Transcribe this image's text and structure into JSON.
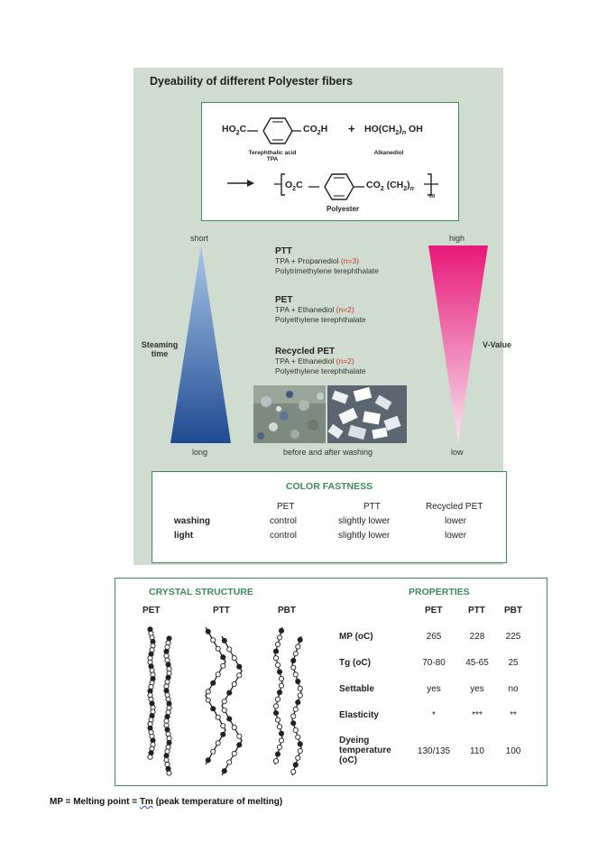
{
  "panel": {
    "title": "Dyeability of  different Polyester fibers",
    "chem": {
      "tpa_left": "HO",
      "tpa_left_sub": "2",
      "tpa_left_c": "C",
      "tpa_right": "CO",
      "tpa_right_sub": "2",
      "tpa_right_h": "H",
      "plus": "+",
      "alk": "HO(CH",
      "alk_sub": "2",
      "alk_n": "n",
      "alk_end": "OH",
      "tpa_caption_1": "Terephthalic acid",
      "tpa_caption_2": "TPA",
      "alk_caption": "Alkanediol",
      "poly_left": "O",
      "poly_left_sub": "2",
      "poly_left_c": "C",
      "poly_right": "CO",
      "poly_right_sub": "2",
      "poly_right_ch": "(CH",
      "poly_right_ch_sub": "2",
      "poly_right_n": "n",
      "poly_m": "m",
      "poly_caption": "Polyester"
    },
    "steaming": {
      "top": "short",
      "bottom": "long",
      "label_1": "Steaming",
      "label_2": "time",
      "color_top": "#a9c7e8",
      "color_bottom": "#1f4b91"
    },
    "vvalue": {
      "top": "high",
      "bottom": "low",
      "label": "V-Value",
      "color_top": "#e8187a",
      "color_bottom": "#f9e4ee"
    },
    "fibers": [
      {
        "name": "PTT",
        "formula_pre": "TPA + Propanediol ",
        "formula_n": "(n=3)",
        "full": "Polytrimethylene terephthalate"
      },
      {
        "name": "PET",
        "formula_pre": "TPA + Ethanediol ",
        "formula_n": "(n=2)",
        "full": "Polyethylene terephthalate"
      },
      {
        "name": "Recycled PET",
        "formula_pre": "TPA + Ethanediol ",
        "formula_n": "(n=2)",
        "full": "Polyethylene terephthalate"
      }
    ],
    "photo_caption": "before and after washing",
    "color_fastness": {
      "title": "COLOR FASTNESS",
      "headers": [
        "PET",
        "PTT",
        "Recycled PET"
      ],
      "rows": [
        {
          "label": "washing",
          "values": [
            "control",
            "slightly lower",
            "lower"
          ]
        },
        {
          "label": "light",
          "values": [
            "control",
            "slightly lower",
            "lower"
          ]
        }
      ]
    }
  },
  "crystal": {
    "title": "CRYSTAL STRUCTURE",
    "labels": [
      "PET",
      "PTT",
      "PBT"
    ]
  },
  "properties": {
    "title": "PROPERTIES",
    "headers": [
      "PET",
      "PTT",
      "PBT"
    ],
    "rows": [
      {
        "label": "MP (oC)",
        "values": [
          "265",
          "228",
          "225"
        ]
      },
      {
        "label": "Tg (oC)",
        "values": [
          "70-80",
          "45-65",
          "25"
        ]
      },
      {
        "label": "Settable",
        "values": [
          "yes",
          "yes",
          "no"
        ]
      },
      {
        "label": "Elasticity",
        "values": [
          "*",
          "***",
          "**"
        ]
      },
      {
        "label_1": "Dyeing",
        "label_2": "temperature",
        "label_3": "(oC)",
        "values": [
          "130/135",
          "110",
          "100"
        ]
      }
    ]
  },
  "footnote": {
    "pre": "MP = Melting point = ",
    "tm": "Tm",
    "post": " (peak temperature of melting)"
  }
}
